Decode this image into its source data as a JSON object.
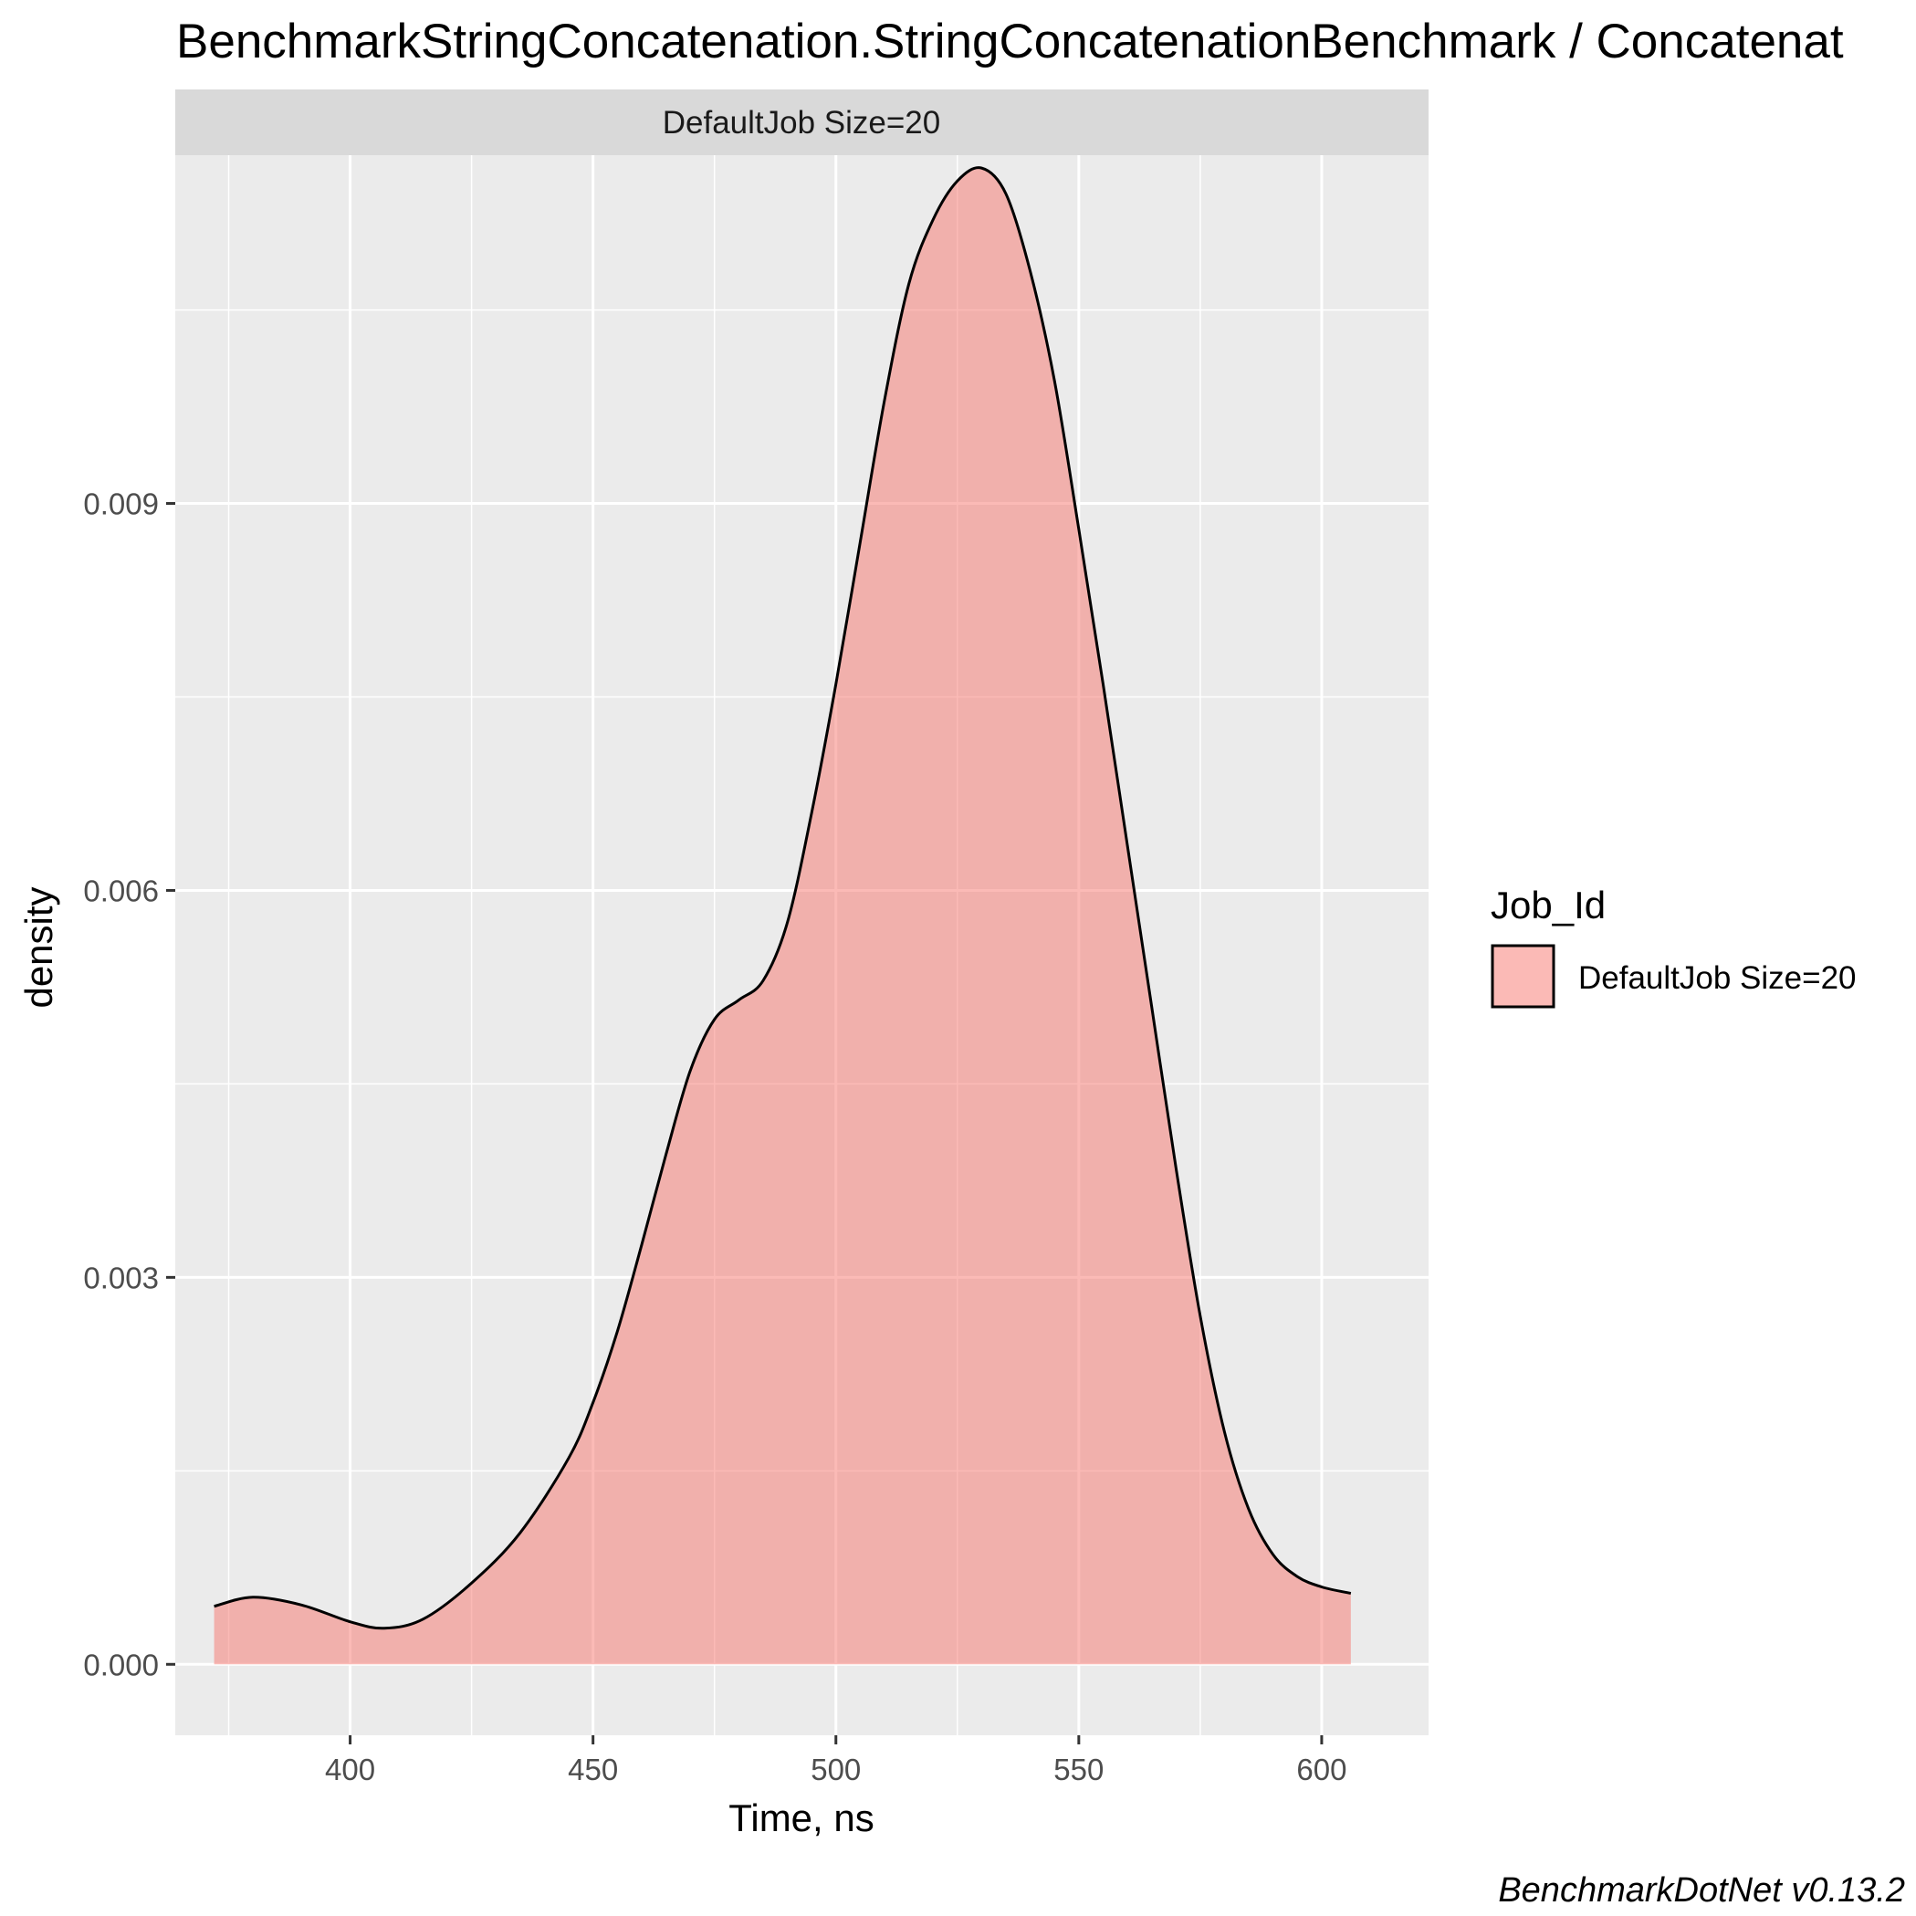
{
  "chart_data": {
    "type": "area",
    "title": "BenchmarkStringConcatenation.StringConcatenationBenchmark / Concatenat",
    "facet_label": "DefaultJob Size=20",
    "xlabel": "Time, ns",
    "ylabel": "density",
    "xlim": [
      364,
      622
    ],
    "ylim": [
      -0.00055,
      0.0117
    ],
    "x_ticks": [
      400,
      450,
      500,
      550,
      600
    ],
    "x_tick_labels": [
      "400",
      "450",
      "500",
      "550",
      "600"
    ],
    "y_ticks": [
      0.0,
      0.003,
      0.006,
      0.009
    ],
    "y_tick_labels": [
      "0.000",
      "0.003",
      "0.006",
      "0.009"
    ],
    "grid": true,
    "legend": {
      "title": "Job_Id",
      "position": "right",
      "entries": [
        "DefaultJob Size=20"
      ]
    },
    "caption": "BenchmarkDotNet v0.13.2",
    "series": [
      {
        "x": [
          372,
          380,
          390,
          400,
          407,
          415,
          425,
          435,
          445,
          450,
          455,
          460,
          465,
          470,
          475,
          480,
          485,
          490,
          495,
          500,
          505,
          510,
          515,
          520,
          525,
          530,
          535,
          540,
          545,
          550,
          555,
          560,
          565,
          570,
          575,
          580,
          585,
          590,
          595,
          600,
          606
        ],
        "y": [
          0.00045,
          0.00052,
          0.00046,
          0.00033,
          0.00028,
          0.00035,
          0.00063,
          0.00102,
          0.0016,
          0.00203,
          0.00258,
          0.00325,
          0.00395,
          0.0046,
          0.005,
          0.00515,
          0.0053,
          0.00575,
          0.0066,
          0.0076,
          0.0087,
          0.0098,
          0.0107,
          0.0112,
          0.0115,
          0.0116,
          0.0114,
          0.0108,
          0.00995,
          0.0088,
          0.0076,
          0.00635,
          0.0051,
          0.00385,
          0.0027,
          0.0018,
          0.0012,
          0.00085,
          0.00068,
          0.0006,
          0.00055
        ]
      }
    ]
  },
  "colors": {
    "panel_background": "#ebebeb",
    "strip_background": "#d9d9d9",
    "grid_line": "#ffffff",
    "fill": "#f8766d",
    "outline": "#000000"
  }
}
